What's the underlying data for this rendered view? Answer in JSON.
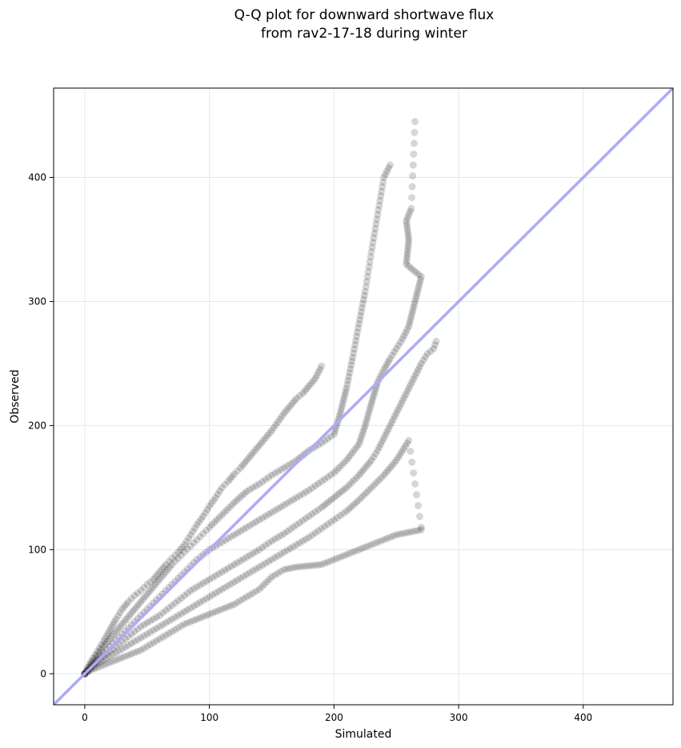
{
  "chart_data": {
    "type": "scatter",
    "title": "Q-Q plot for downward shortwave flux",
    "subtitle": "from rav2-17-18 during winter",
    "xlabel": "Simulated",
    "ylabel": "Observed",
    "xlim": [
      -25,
      472
    ],
    "ylim": [
      -25,
      472
    ],
    "xticks": [
      0,
      100,
      200,
      300,
      400
    ],
    "yticks": [
      0,
      100,
      200,
      300,
      400
    ],
    "grid": true,
    "reference_line": {
      "from": [
        -25,
        -25
      ],
      "to": [
        472,
        472
      ],
      "color": "#aaaaff"
    },
    "point_color": "#000000",
    "point_alpha": 0.16,
    "series": [
      {
        "points": [
          [
            0,
            0
          ],
          [
            5,
            10
          ],
          [
            10,
            18
          ],
          [
            15,
            26
          ],
          [
            20,
            35
          ],
          [
            25,
            44
          ],
          [
            30,
            52
          ],
          [
            35,
            58
          ],
          [
            40,
            63
          ],
          [
            45,
            67
          ],
          [
            50,
            72
          ],
          [
            55,
            76
          ],
          [
            60,
            82
          ],
          [
            65,
            88
          ],
          [
            70,
            93
          ],
          [
            75,
            98
          ],
          [
            80,
            104
          ],
          [
            85,
            112
          ],
          [
            90,
            120
          ],
          [
            95,
            127
          ],
          [
            100,
            135
          ],
          [
            105,
            142
          ],
          [
            110,
            150
          ],
          [
            115,
            155
          ],
          [
            120,
            161
          ],
          [
            125,
            166
          ],
          [
            130,
            172
          ],
          [
            135,
            178
          ],
          [
            140,
            184
          ],
          [
            145,
            190
          ],
          [
            150,
            196
          ],
          [
            155,
            203
          ],
          [
            160,
            210
          ],
          [
            165,
            216
          ],
          [
            170,
            222
          ],
          [
            175,
            226
          ],
          [
            180,
            232
          ],
          [
            185,
            238
          ],
          [
            190,
            248
          ]
        ]
      },
      {
        "points": [
          [
            0,
            0
          ],
          [
            5,
            8
          ],
          [
            10,
            15
          ],
          [
            15,
            22
          ],
          [
            20,
            28
          ],
          [
            25,
            34
          ],
          [
            30,
            40
          ],
          [
            35,
            46
          ],
          [
            40,
            52
          ],
          [
            45,
            58
          ],
          [
            50,
            64
          ],
          [
            55,
            70
          ],
          [
            60,
            76
          ],
          [
            65,
            82
          ],
          [
            70,
            88
          ],
          [
            75,
            93
          ],
          [
            80,
            98
          ],
          [
            85,
            103
          ],
          [
            90,
            108
          ],
          [
            95,
            113
          ],
          [
            100,
            118
          ],
          [
            110,
            128
          ],
          [
            120,
            138
          ],
          [
            130,
            147
          ],
          [
            140,
            153
          ],
          [
            150,
            160
          ],
          [
            160,
            166
          ],
          [
            170,
            172
          ],
          [
            180,
            180
          ],
          [
            190,
            186
          ],
          [
            200,
            193
          ],
          [
            205,
            210
          ],
          [
            210,
            230
          ],
          [
            215,
            255
          ],
          [
            220,
            282
          ],
          [
            225,
            308
          ],
          [
            230,
            340
          ],
          [
            235,
            370
          ],
          [
            240,
            400
          ],
          [
            245,
            410
          ]
        ]
      },
      {
        "points": [
          [
            0,
            0
          ],
          [
            5,
            6
          ],
          [
            10,
            12
          ],
          [
            15,
            17
          ],
          [
            20,
            22
          ],
          [
            25,
            27
          ],
          [
            30,
            32
          ],
          [
            35,
            37
          ],
          [
            40,
            42
          ],
          [
            45,
            47
          ],
          [
            50,
            52
          ],
          [
            55,
            57
          ],
          [
            60,
            62
          ],
          [
            65,
            67
          ],
          [
            70,
            72
          ],
          [
            75,
            77
          ],
          [
            80,
            82
          ],
          [
            85,
            87
          ],
          [
            90,
            92
          ],
          [
            95,
            96
          ],
          [
            100,
            100
          ],
          [
            110,
            106
          ],
          [
            120,
            112
          ],
          [
            130,
            118
          ],
          [
            140,
            124
          ],
          [
            150,
            130
          ],
          [
            160,
            136
          ],
          [
            170,
            142
          ],
          [
            180,
            148
          ],
          [
            190,
            155
          ],
          [
            200,
            162
          ],
          [
            210,
            172
          ],
          [
            220,
            185
          ],
          [
            225,
            200
          ],
          [
            230,
            218
          ],
          [
            235,
            235
          ],
          [
            240,
            245
          ],
          [
            245,
            254
          ],
          [
            250,
            262
          ],
          [
            255,
            270
          ],
          [
            260,
            280
          ],
          [
            265,
            300
          ],
          [
            270,
            320
          ],
          [
            258,
            330
          ],
          [
            260,
            350
          ],
          [
            258,
            365
          ],
          [
            262,
            375
          ],
          [
            265,
            445
          ]
        ]
      },
      {
        "points": [
          [
            0,
            0
          ],
          [
            5,
            5
          ],
          [
            10,
            10
          ],
          [
            15,
            14
          ],
          [
            20,
            18
          ],
          [
            25,
            22
          ],
          [
            30,
            26
          ],
          [
            35,
            30
          ],
          [
            40,
            34
          ],
          [
            45,
            38
          ],
          [
            50,
            41
          ],
          [
            55,
            44
          ],
          [
            60,
            47
          ],
          [
            65,
            51
          ],
          [
            70,
            55
          ],
          [
            75,
            59
          ],
          [
            80,
            63
          ],
          [
            85,
            67
          ],
          [
            90,
            70
          ],
          [
            95,
            73
          ],
          [
            100,
            76
          ],
          [
            110,
            82
          ],
          [
            120,
            88
          ],
          [
            130,
            94
          ],
          [
            140,
            100
          ],
          [
            150,
            107
          ],
          [
            160,
            113
          ],
          [
            170,
            120
          ],
          [
            180,
            127
          ],
          [
            190,
            134
          ],
          [
            200,
            142
          ],
          [
            210,
            150
          ],
          [
            220,
            160
          ],
          [
            230,
            172
          ],
          [
            235,
            180
          ],
          [
            240,
            190
          ],
          [
            245,
            200
          ],
          [
            250,
            210
          ],
          [
            255,
            220
          ],
          [
            260,
            230
          ],
          [
            265,
            240
          ],
          [
            270,
            250
          ],
          [
            275,
            258
          ],
          [
            280,
            262
          ],
          [
            282,
            268
          ]
        ]
      },
      {
        "points": [
          [
            0,
            0
          ],
          [
            5,
            4
          ],
          [
            10,
            8
          ],
          [
            15,
            11
          ],
          [
            20,
            14
          ],
          [
            25,
            17
          ],
          [
            30,
            20
          ],
          [
            35,
            23
          ],
          [
            40,
            26
          ],
          [
            45,
            29
          ],
          [
            50,
            32
          ],
          [
            55,
            35
          ],
          [
            60,
            38
          ],
          [
            65,
            41
          ],
          [
            70,
            44
          ],
          [
            75,
            47
          ],
          [
            80,
            50
          ],
          [
            85,
            53
          ],
          [
            90,
            56
          ],
          [
            95,
            59
          ],
          [
            100,
            62
          ],
          [
            110,
            68
          ],
          [
            120,
            74
          ],
          [
            130,
            80
          ],
          [
            140,
            86
          ],
          [
            150,
            92
          ],
          [
            160,
            98
          ],
          [
            170,
            104
          ],
          [
            180,
            110
          ],
          [
            190,
            117
          ],
          [
            200,
            124
          ],
          [
            210,
            131
          ],
          [
            220,
            140
          ],
          [
            230,
            150
          ],
          [
            240,
            160
          ],
          [
            250,
            172
          ],
          [
            260,
            188
          ],
          [
            270,
            118
          ]
        ]
      },
      {
        "points": [
          [
            0,
            0
          ],
          [
            5,
            3
          ],
          [
            10,
            5
          ],
          [
            15,
            7
          ],
          [
            20,
            9
          ],
          [
            25,
            11
          ],
          [
            30,
            13
          ],
          [
            35,
            15
          ],
          [
            40,
            17
          ],
          [
            45,
            19
          ],
          [
            50,
            22
          ],
          [
            55,
            25
          ],
          [
            60,
            28
          ],
          [
            65,
            31
          ],
          [
            70,
            34
          ],
          [
            75,
            37
          ],
          [
            80,
            40
          ],
          [
            85,
            42
          ],
          [
            90,
            44
          ],
          [
            95,
            46
          ],
          [
            100,
            48
          ],
          [
            110,
            52
          ],
          [
            120,
            56
          ],
          [
            130,
            62
          ],
          [
            140,
            68
          ],
          [
            150,
            78
          ],
          [
            160,
            84
          ],
          [
            170,
            86
          ],
          [
            180,
            87
          ],
          [
            190,
            88
          ],
          [
            200,
            92
          ],
          [
            210,
            96
          ],
          [
            220,
            100
          ],
          [
            230,
            104
          ],
          [
            240,
            108
          ],
          [
            250,
            112
          ],
          [
            270,
            116
          ]
        ]
      }
    ]
  }
}
